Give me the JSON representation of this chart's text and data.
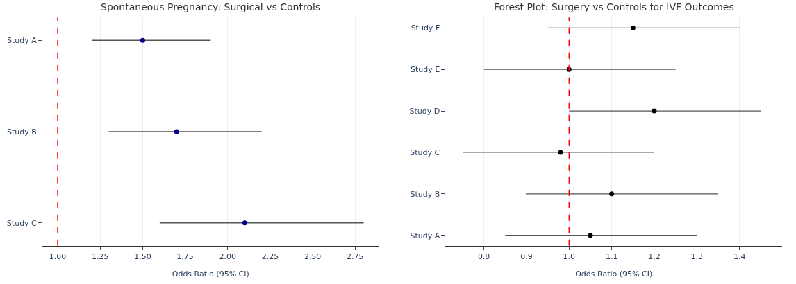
{
  "chart_data": [
    {
      "type": "scatter",
      "orientation": "horizontal",
      "title": "Spontaneous Pregnancy: Surgical vs Controls",
      "xlabel": "Odds Ratio (95% CI)",
      "categories": [
        "Study A",
        "Study B",
        "Study C"
      ],
      "series": [
        {
          "color": "#00008b",
          "values": [
            1.5,
            1.7,
            2.1
          ],
          "errors": [
            [
              1.2,
              1.9
            ],
            [
              1.3,
              2.2
            ],
            [
              1.6,
              2.8
            ]
          ]
        }
      ],
      "xlim": [
        0.91,
        2.89
      ],
      "xticks": [
        {
          "value": 1.0,
          "label": "1.00"
        },
        1.25,
        {
          "value": 1.5,
          "label": "1.50"
        },
        1.75,
        {
          "value": 2.0,
          "label": "2.00"
        },
        2.25,
        {
          "value": 2.5,
          "label": "2.50"
        },
        2.75
      ],
      "ref_lines": [
        {
          "axis": "x",
          "value": 1.0,
          "color": "#ff0000",
          "line_style": "dashed"
        }
      ],
      "grid": "x",
      "marker": "circle"
    },
    {
      "type": "scatter",
      "orientation": "horizontal",
      "title": "Forest Plot: Surgery vs Controls for IVF Outcomes",
      "xlabel": "Odds Ratio (95% CI)",
      "categories": [
        "Study F",
        "Study E",
        "Study D",
        "Study C",
        "Study B",
        "Study A"
      ],
      "series": [
        {
          "color": "#000000",
          "values": [
            1.15,
            1.0,
            1.2,
            0.98,
            1.1,
            1.05
          ],
          "errors": [
            [
              0.95,
              1.4
            ],
            [
              0.8,
              1.25
            ],
            [
              1.0,
              1.45
            ],
            [
              0.75,
              1.2
            ],
            [
              0.9,
              1.35
            ],
            [
              0.85,
              1.3
            ]
          ]
        }
      ],
      "xlim": [
        0.71,
        1.5
      ],
      "xticks": [
        0.8,
        0.9,
        {
          "value": 1.0,
          "label": "1.0"
        },
        1.1,
        1.2,
        1.3,
        1.4
      ],
      "ref_lines": [
        {
          "axis": "x",
          "value": 1.0,
          "color": "#ff0000",
          "line_style": "dashed"
        }
      ],
      "grid": "x",
      "marker": "circle"
    }
  ]
}
